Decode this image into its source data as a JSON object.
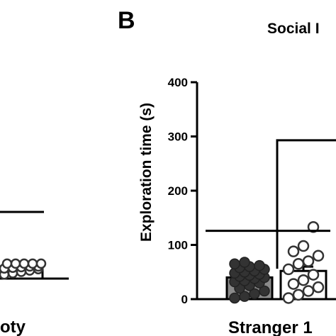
{
  "panel_label": "B",
  "title_fragment": "Social I",
  "left_panel": {
    "xlabel_fragment": "oty",
    "points": [
      6,
      8,
      10,
      12,
      14,
      15,
      16,
      17,
      18,
      18,
      18,
      18,
      18,
      18,
      18
    ]
  },
  "chart_data": {
    "type": "bar",
    "ylabel": "Exploration time (s)",
    "ylim": [
      0,
      400
    ],
    "yticks": [
      0,
      100,
      200,
      300,
      400
    ],
    "group_label": "Stranger 1",
    "series": [
      {
        "values": [
          40
        ],
        "points": [
          2,
          5,
          10,
          15,
          20,
          25,
          30,
          32,
          34,
          38,
          40,
          42,
          44,
          46,
          48,
          50,
          52,
          55,
          58,
          60,
          62,
          65,
          68
        ]
      },
      {
        "values": [
          52
        ],
        "points": [
          2,
          8,
          15,
          22,
          28,
          35,
          45,
          55,
          65,
          70,
          80,
          88,
          98,
          133
        ]
      }
    ],
    "colors": {
      "bar1": "#8a8a8a",
      "bar2": "#ffffff",
      "marker_fill": "#333333",
      "axis": "#000000"
    },
    "significance_bracket_levels": [
      293,
      126
    ]
  }
}
